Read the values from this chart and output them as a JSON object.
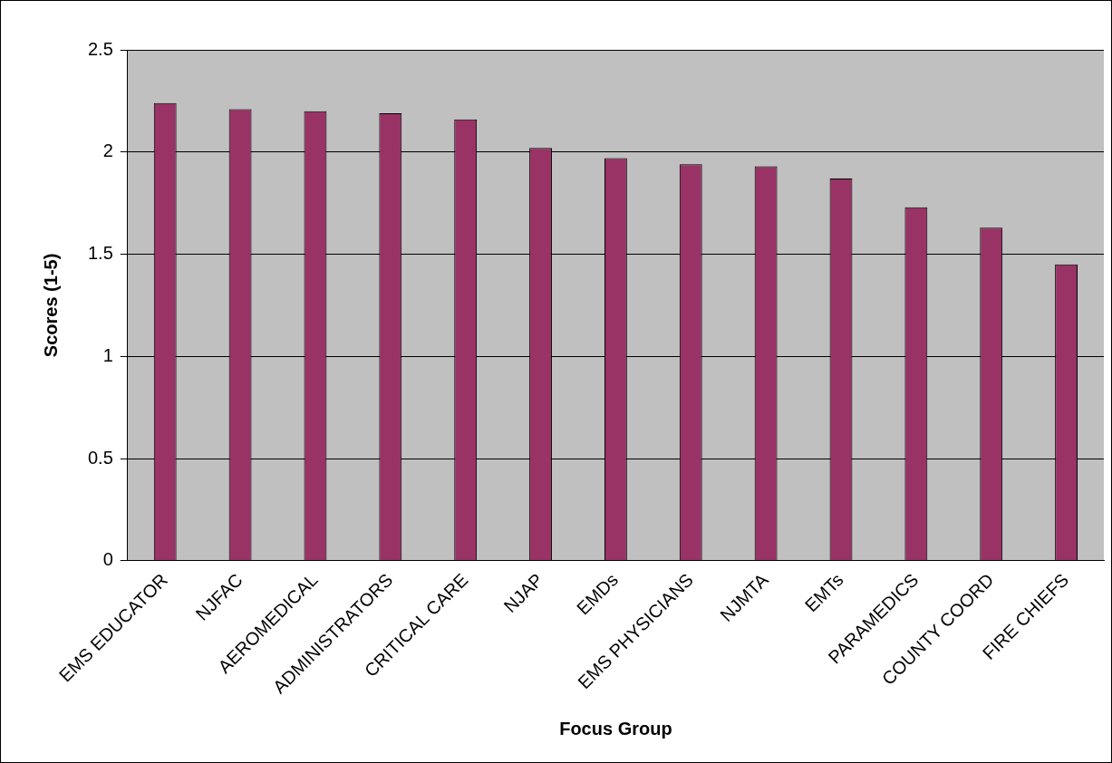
{
  "chart_data": {
    "type": "bar",
    "xlabel": "Focus Group",
    "ylabel": "Scores (1-5)",
    "categories": [
      "EMS EDUCATOR",
      "NJFAC",
      "AEROMEDICAL",
      "ADMINISTRATORS",
      "CRITICAL CARE",
      "NJAP",
      "EMDs",
      "EMS PHYSICIANS",
      "NJMTA",
      "EMTs",
      "PARAMEDICS",
      "COUNTY COORD",
      "FIRE CHIEFS"
    ],
    "values": [
      2.24,
      2.21,
      2.2,
      2.19,
      2.16,
      2.02,
      1.97,
      1.94,
      1.93,
      1.87,
      1.73,
      1.63,
      1.45
    ],
    "color": "#993366",
    "ylim": [
      0,
      2.5
    ],
    "yticks": [
      0,
      0.5,
      1,
      1.5,
      2,
      2.5
    ],
    "grid": "y",
    "legend": false
  }
}
